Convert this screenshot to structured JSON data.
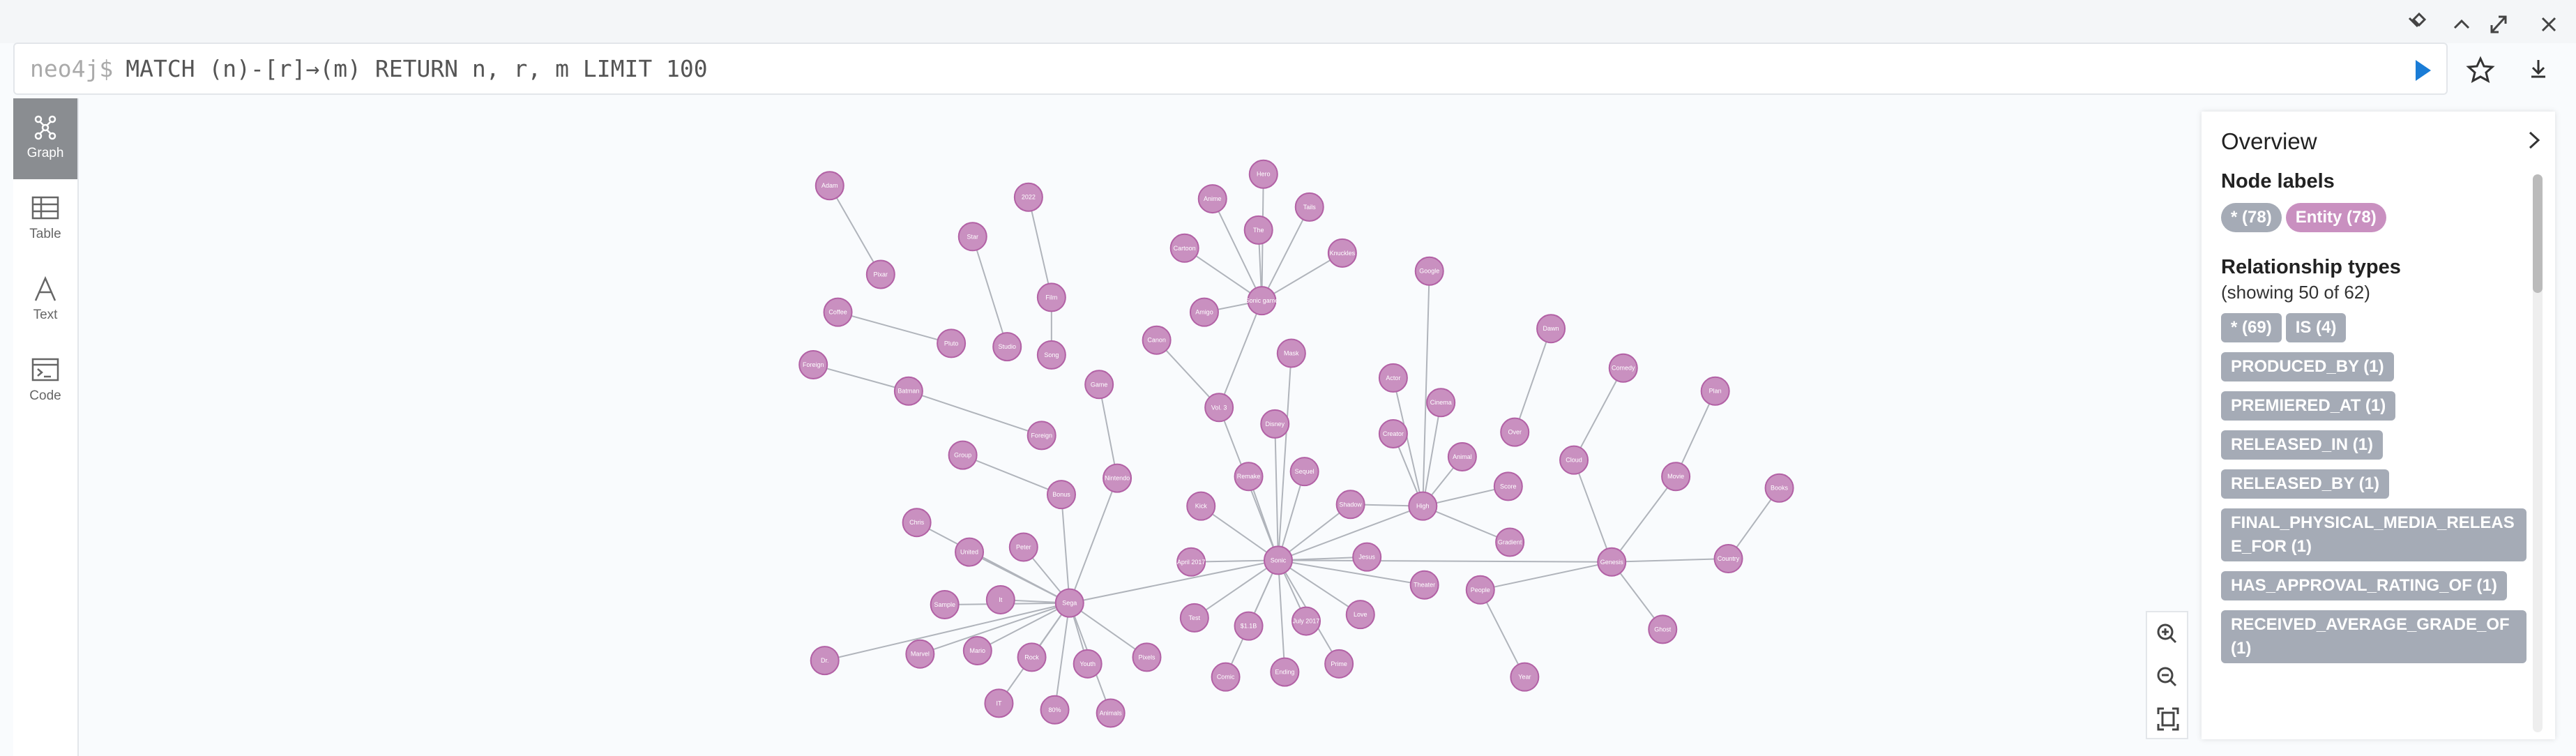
{
  "query": {
    "prompt": "neo4j$",
    "text": "MATCH (n)-[r]→(m) RETURN n, r, m LIMIT 100"
  },
  "sidebar": [
    "Graph",
    "Table",
    "Text",
    "Code"
  ],
  "overview": {
    "title": "Overview",
    "node_labels_heading": "Node labels",
    "node_labels": [
      "* (78)",
      "Entity (78)"
    ],
    "relationship_types_heading": "Relationship types",
    "relationship_types_note": "(showing 50 of 62)",
    "relationship_types": [
      "* (69)",
      "IS (4)",
      "PRODUCED_BY (1)",
      "PREMIERED_AT (1)",
      "RELEASED_IN (1)",
      "RELEASED_BY (1)",
      "FINAL_PHYSICAL_MEDIA_RELEASE_FOR (1)",
      "HAS_APPROVAL_RATING_OF (1)",
      "RECEIVED_AVERAGE_GRADE_OF (1)"
    ]
  },
  "graph": {
    "nodes": [
      "Sonic",
      "Sega",
      "High",
      "Genesis",
      "Sonic game",
      "Adam",
      "Pixar",
      "Coffee",
      "Pluto",
      "Foreign",
      "Batman",
      "Star",
      "2022",
      "Film",
      "Studio",
      "Song",
      "Game",
      "Foreign",
      "Group",
      "Bonus",
      "Nintendo",
      "Chris",
      "United",
      "Peter",
      "Sample",
      "It",
      "Dr.",
      "Marvel",
      "Mario",
      "Rock",
      "Youth",
      "IT",
      "80%",
      "Animals",
      "Pixels",
      "Canon",
      "Cartoon",
      "Anime",
      "Hero",
      "The",
      "Tails",
      "Knuckles",
      "Amigo",
      "Mask",
      "Vol. 3",
      "Disney",
      "Remake",
      "Sequel",
      "Kick",
      "Shadow",
      "April 2017",
      "Jesus",
      "Test",
      "$1.1B",
      "July 2017",
      "Love",
      "Comic",
      "Ending",
      "Prime",
      "Google",
      "Actor",
      "Cinema",
      "Creator",
      "Animal",
      "Score",
      "Gradient",
      "Theater",
      "People",
      "Year",
      "Dawn",
      "Over",
      "Cloud",
      "Comedy",
      "Plan",
      "Movie",
      "Books",
      "Country",
      "Ghost"
    ]
  }
}
